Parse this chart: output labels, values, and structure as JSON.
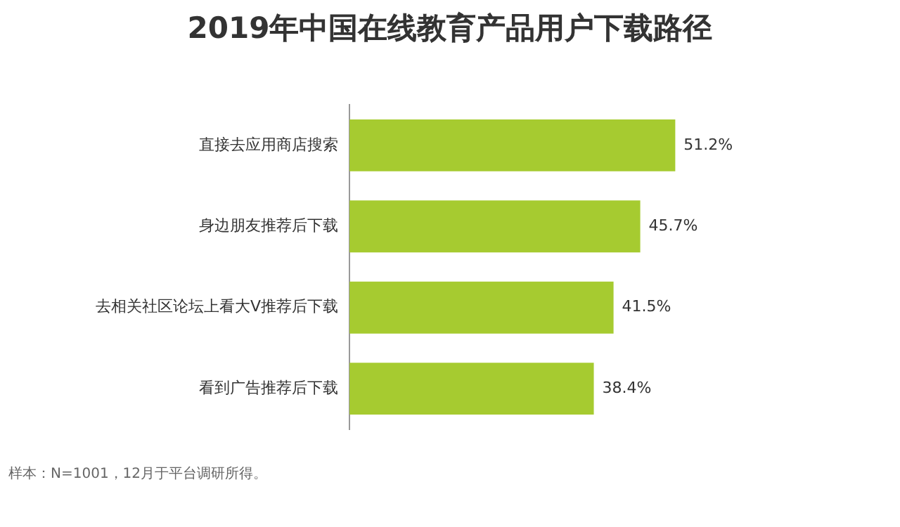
{
  "chart_data": {
    "type": "bar",
    "orientation": "horizontal",
    "title": "2019年中国在线教育产品用户下载路径",
    "categories": [
      "直接去应用商店搜索",
      "身边朋友推荐后下载",
      "去相关社区论坛上看大V推荐后下载",
      "看到广告推荐后下载"
    ],
    "values": [
      51.2,
      45.7,
      41.5,
      38.4
    ],
    "value_labels": [
      "51.2%",
      "45.7%",
      "41.5%",
      "38.4%"
    ],
    "color": "#a6cb30",
    "tick_labels": "y",
    "annotations": [
      "样本：N=1001，12月于平台调研所得。"
    ]
  }
}
